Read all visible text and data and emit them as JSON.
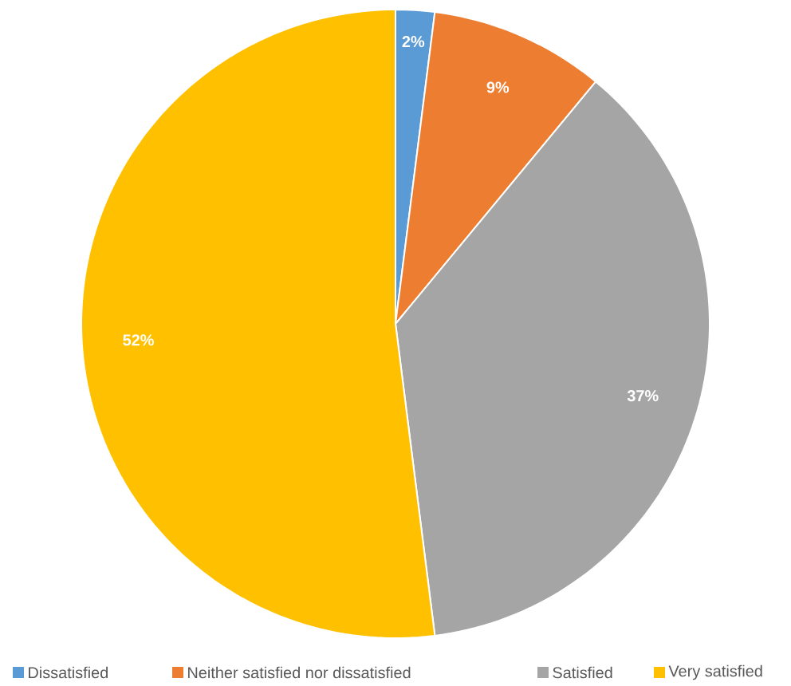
{
  "chart_data": {
    "type": "pie",
    "categories": [
      "Dissatisfied",
      "Neither satisfied nor dissatisfied",
      "Satisfied",
      "Very satisfied"
    ],
    "values": [
      2,
      9,
      37,
      52
    ],
    "value_labels": [
      "2%",
      "9%",
      "37%",
      "52%"
    ],
    "colors": [
      "#5b9bd5",
      "#ed7d31",
      "#a5a5a5",
      "#ffc000"
    ],
    "legend": "bottom"
  }
}
